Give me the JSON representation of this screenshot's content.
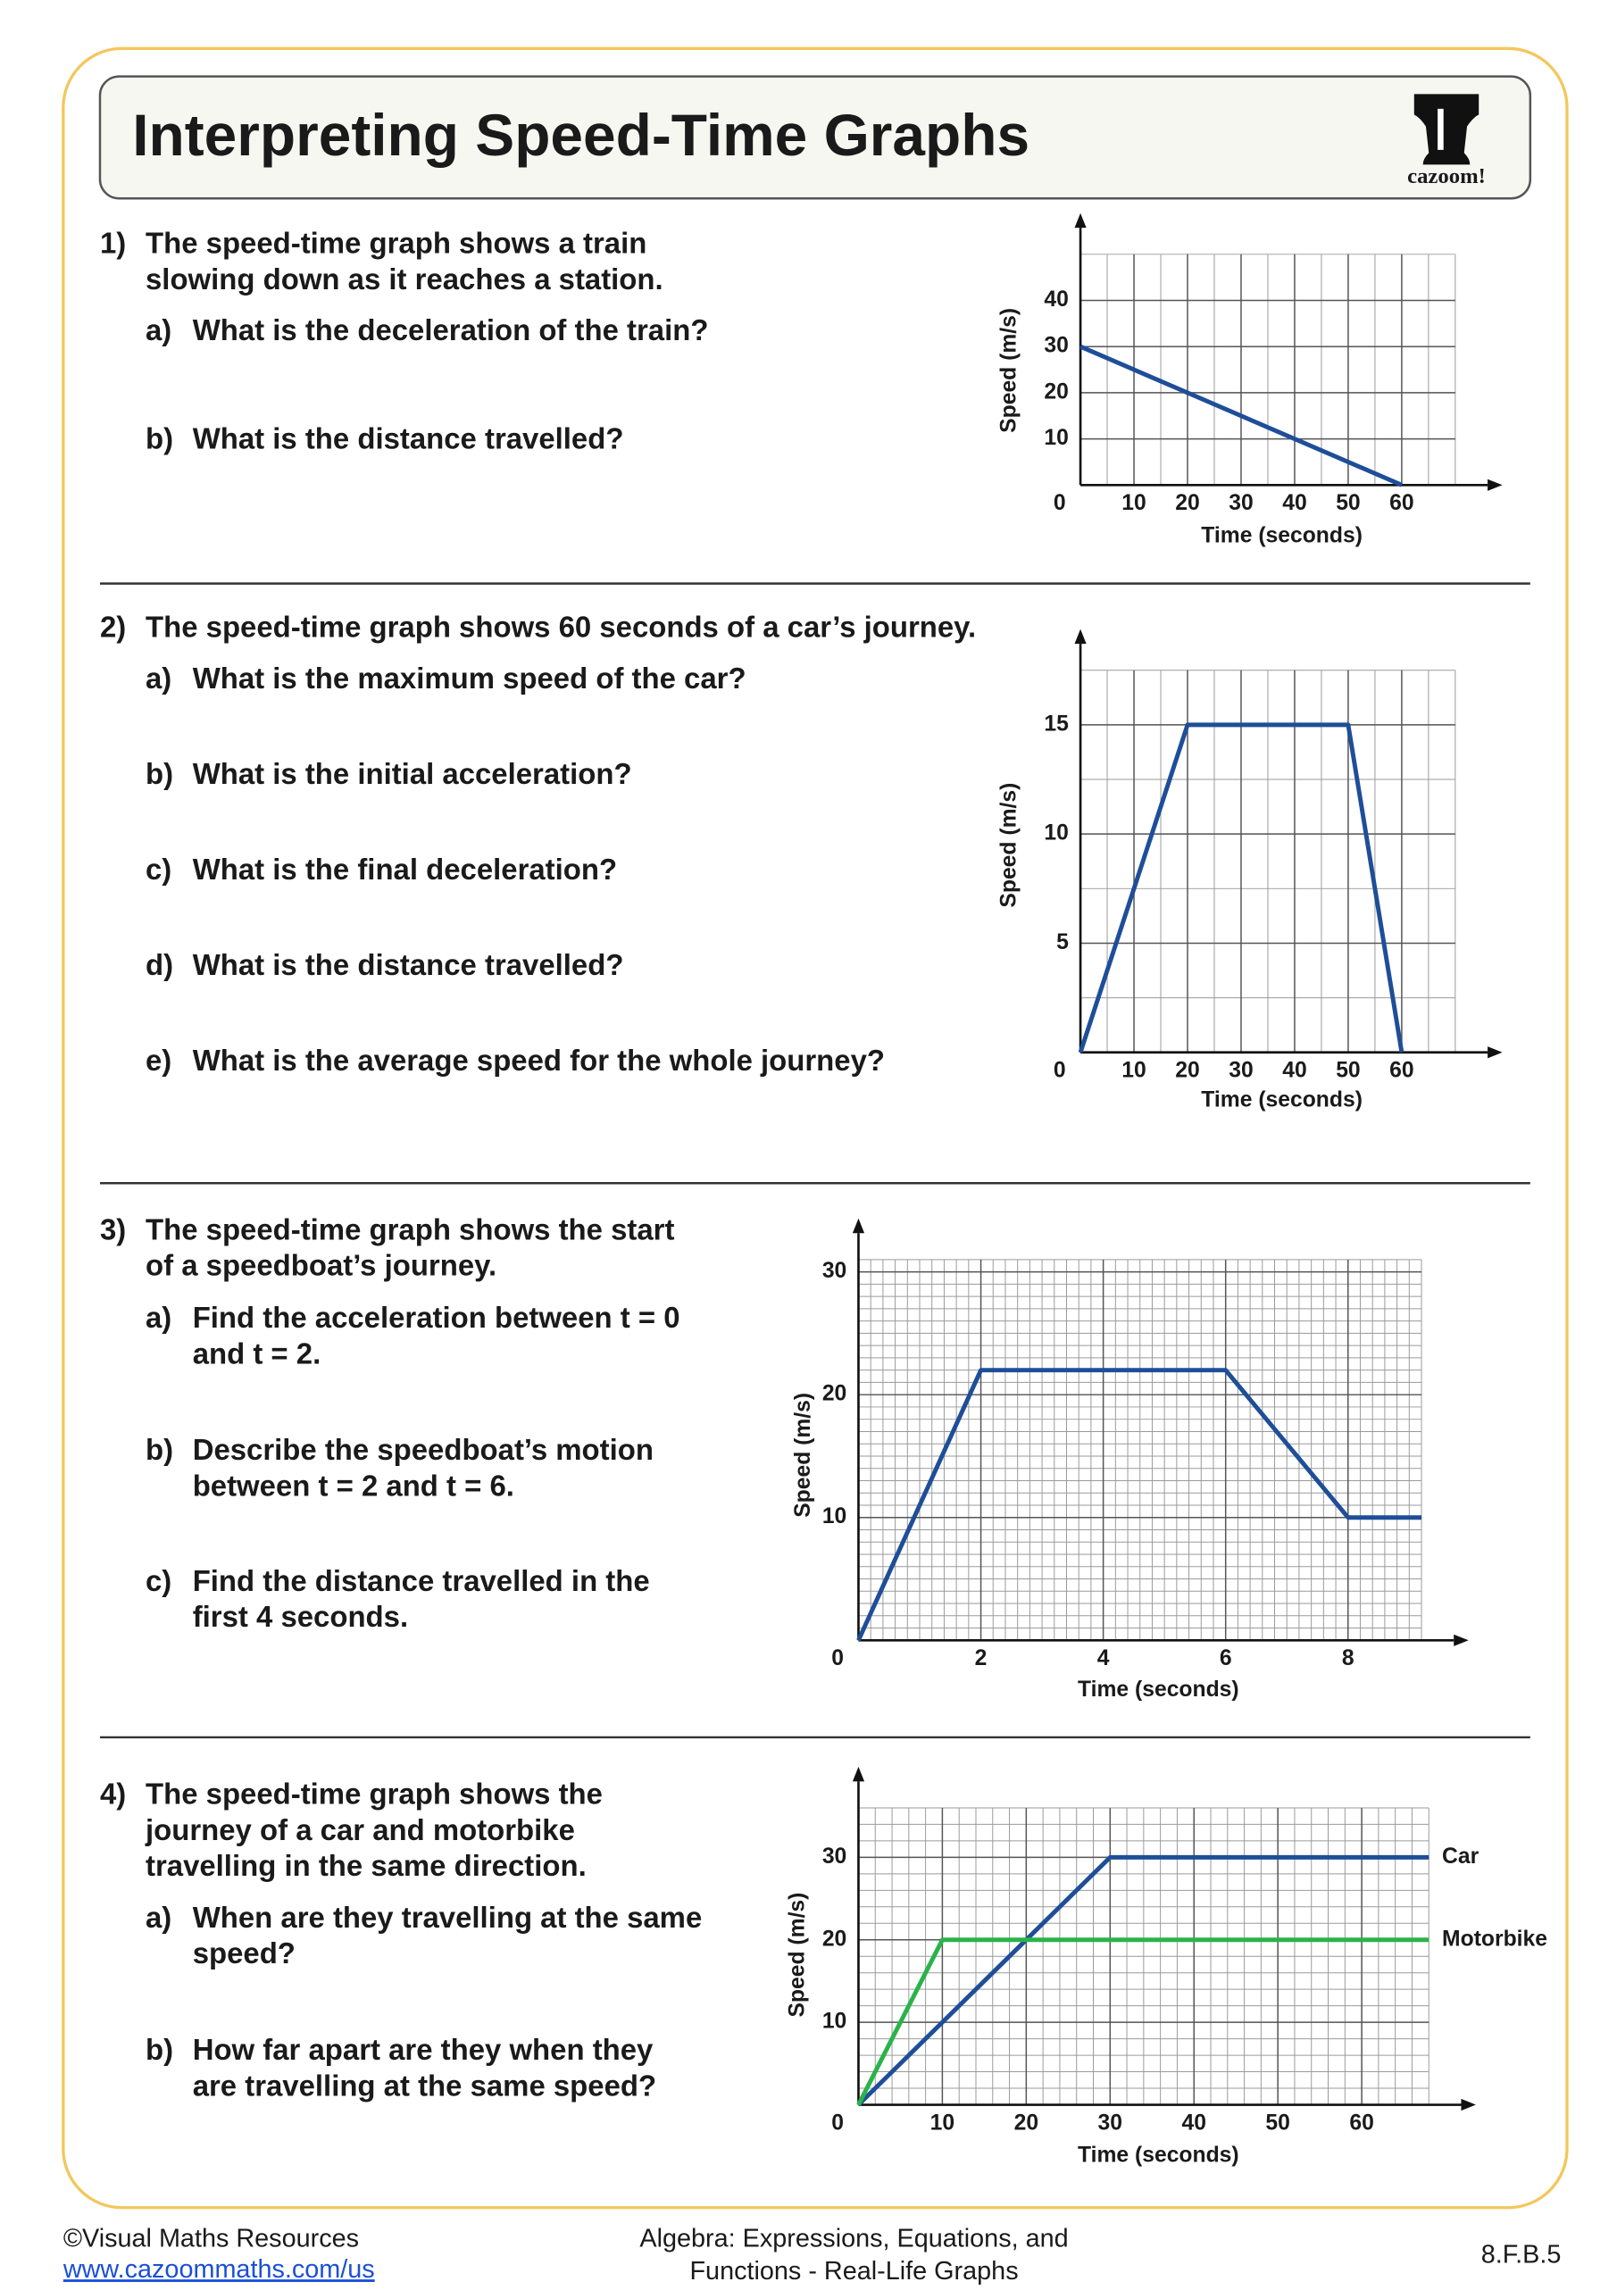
{
  "header": {
    "title": "Interpreting Speed-Time Graphs",
    "logo": "cazoom!"
  },
  "questions": [
    {
      "number": "1)",
      "text": [
        "The speed-time graph shows a train",
        "slowing down as it reaches a station."
      ],
      "parts": [
        {
          "letter": "a)",
          "text": [
            "What is the deceleration of the train?"
          ]
        },
        {
          "letter": "b)",
          "text": [
            "What is the distance travelled?"
          ]
        }
      ],
      "chart": {
        "type": "line",
        "x_label": "Time (seconds)",
        "y_label": "Speed (m/s)",
        "xlim": [
          0,
          70
        ],
        "ylim": [
          0,
          50
        ],
        "xticks": [
          0,
          10,
          20,
          30,
          40,
          50,
          60
        ],
        "yticks": [
          10,
          20,
          30,
          40
        ],
        "grid": {
          "x": 5,
          "y": 10
        },
        "series": [
          {
            "color": "#1f4e99",
            "x": [
              0,
              60
            ],
            "values": [
              30,
              0
            ]
          }
        ]
      }
    },
    {
      "number": "2)",
      "text": [
        "The speed-time graph shows 60 seconds of a car’s journey."
      ],
      "parts": [
        {
          "letter": "a)",
          "text": [
            "What is the maximum speed of the car?"
          ]
        },
        {
          "letter": "b)",
          "text": [
            "What is the initial acceleration?"
          ]
        },
        {
          "letter": "c)",
          "text": [
            "What is the final deceleration?"
          ]
        },
        {
          "letter": "d)",
          "text": [
            "What is the distance travelled?"
          ]
        },
        {
          "letter": "e)",
          "text": [
            "What is the average speed for the whole journey?"
          ]
        }
      ],
      "chart": {
        "type": "line",
        "x_label": "Time (seconds)",
        "y_label": "Speed (m/s)",
        "xlim": [
          0,
          70
        ],
        "ylim": [
          0,
          17.5
        ],
        "xticks": [
          0,
          10,
          20,
          30,
          40,
          50,
          60
        ],
        "yticks": [
          5,
          10,
          15
        ],
        "grid": {
          "x": 5,
          "y": 2.5
        },
        "series": [
          {
            "color": "#1f4e99",
            "x": [
              0,
              20,
              50,
              60
            ],
            "values": [
              0,
              15,
              15,
              0
            ]
          }
        ]
      }
    },
    {
      "number": "3)",
      "text": [
        "The speed-time graph shows the start",
        "of a speedboat’s journey."
      ],
      "parts": [
        {
          "letter": "a)",
          "text": [
            "Find the acceleration between t = 0",
            "and t = 2."
          ]
        },
        {
          "letter": "b)",
          "text": [
            "Describe the speedboat’s motion",
            "between t = 2 and t = 6."
          ]
        },
        {
          "letter": "c)",
          "text": [
            "Find the distance travelled in the",
            "first 4 seconds."
          ]
        }
      ],
      "chart": {
        "type": "line",
        "x_label": "Time (seconds)",
        "y_label": "Speed (m/s)",
        "xlim": [
          0,
          9.2
        ],
        "ylim": [
          0,
          31
        ],
        "xticks": [
          0,
          2,
          4,
          6,
          8
        ],
        "yticks": [
          10,
          20,
          30
        ],
        "grid": {
          "x": 0.2,
          "y": 1
        },
        "series": [
          {
            "color": "#1f4e99",
            "x": [
              0,
              2,
              6,
              8,
              9.2
            ],
            "values": [
              0,
              22,
              22,
              10,
              10
            ]
          }
        ]
      }
    },
    {
      "number": "4)",
      "text": [
        "The speed-time graph shows the",
        "journey of a car and motorbike",
        "travelling in the same direction."
      ],
      "parts": [
        {
          "letter": "a)",
          "text": [
            "When are they travelling at the same",
            "speed?"
          ]
        },
        {
          "letter": "b)",
          "text": [
            "How far apart are they when they",
            "are travelling at the same speed?"
          ]
        }
      ],
      "chart": {
        "type": "line",
        "x_label": "Time (seconds)",
        "y_label": "Speed (m/s)",
        "xlim": [
          0,
          68
        ],
        "ylim": [
          0,
          36
        ],
        "xticks": [
          0,
          10,
          20,
          30,
          40,
          50,
          60
        ],
        "yticks": [
          10,
          20,
          30
        ],
        "grid": {
          "x": 2,
          "y": 2
        },
        "series": [
          {
            "name": "Car",
            "color": "#1f4e99",
            "x": [
              0,
              30,
              68
            ],
            "values": [
              0,
              30,
              30
            ]
          },
          {
            "name": "Motorbike",
            "color": "#2bb34a",
            "x": [
              0,
              10,
              68
            ],
            "values": [
              0,
              20,
              20
            ]
          }
        ]
      }
    }
  ],
  "footer": {
    "copyright": "©Visual Maths Resources",
    "link": "www.cazoommaths.com/us",
    "topic": [
      "Algebra: Expressions, Equations, and",
      "Functions - Real-Life Graphs"
    ],
    "code": "8.F.B.5"
  }
}
